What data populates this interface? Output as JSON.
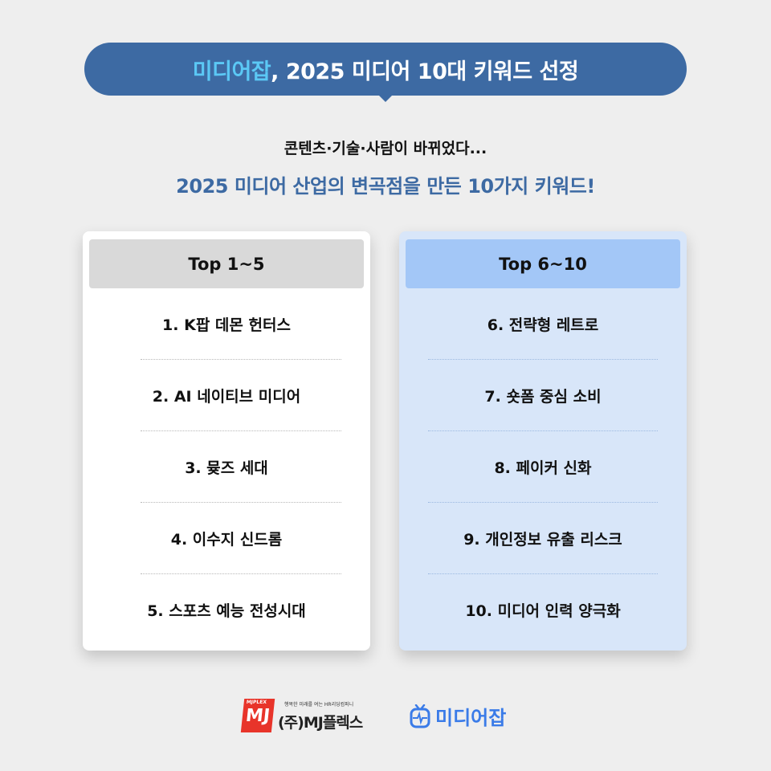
{
  "banner": {
    "highlight": "미디어잡",
    "rest": ", 2025 미디어 10대 키워드 선정"
  },
  "subtitle": "콘텐츠·기술·사람이 바뀌었다...",
  "headline": "2025 미디어 산업의 변곡점을 만든 10가지 키워드!",
  "cards": [
    {
      "title": "Top 1~5",
      "items": [
        "1. K팝 데몬 헌터스",
        "2. AI 네이티브 미디어",
        "3. 뮺즈 세대",
        "4. 이수지 신드롬",
        "5. 스포츠 예능 전성시대"
      ]
    },
    {
      "title": "Top 6~10",
      "items": [
        "6. 전략형 레트로",
        "7. 숏폼 중심 소비",
        "8. 페이커 신화",
        "9. 개인정보 유출 리스크",
        "10. 미디어 인력 양극화"
      ]
    }
  ],
  "logos": {
    "mjplex": {
      "mark": "MJ",
      "small": "MJPLEX",
      "tagline": "행복한 미래를 여는 HR리딩컴퍼니",
      "name": "(주)MJ플렉스"
    },
    "mediajob": {
      "name": "미디어잡",
      "icon": "tv-icon"
    }
  },
  "colors": {
    "background": "#eeeeee",
    "banner": "#3d6aa3",
    "highlight": "#5bc8f5",
    "right_card": "#d8e6f9",
    "right_header": "#a3c7f7",
    "left_header": "#d9d9d9",
    "mediajob_blue": "#3a7be8",
    "mjplex_red": "#e8342a"
  }
}
